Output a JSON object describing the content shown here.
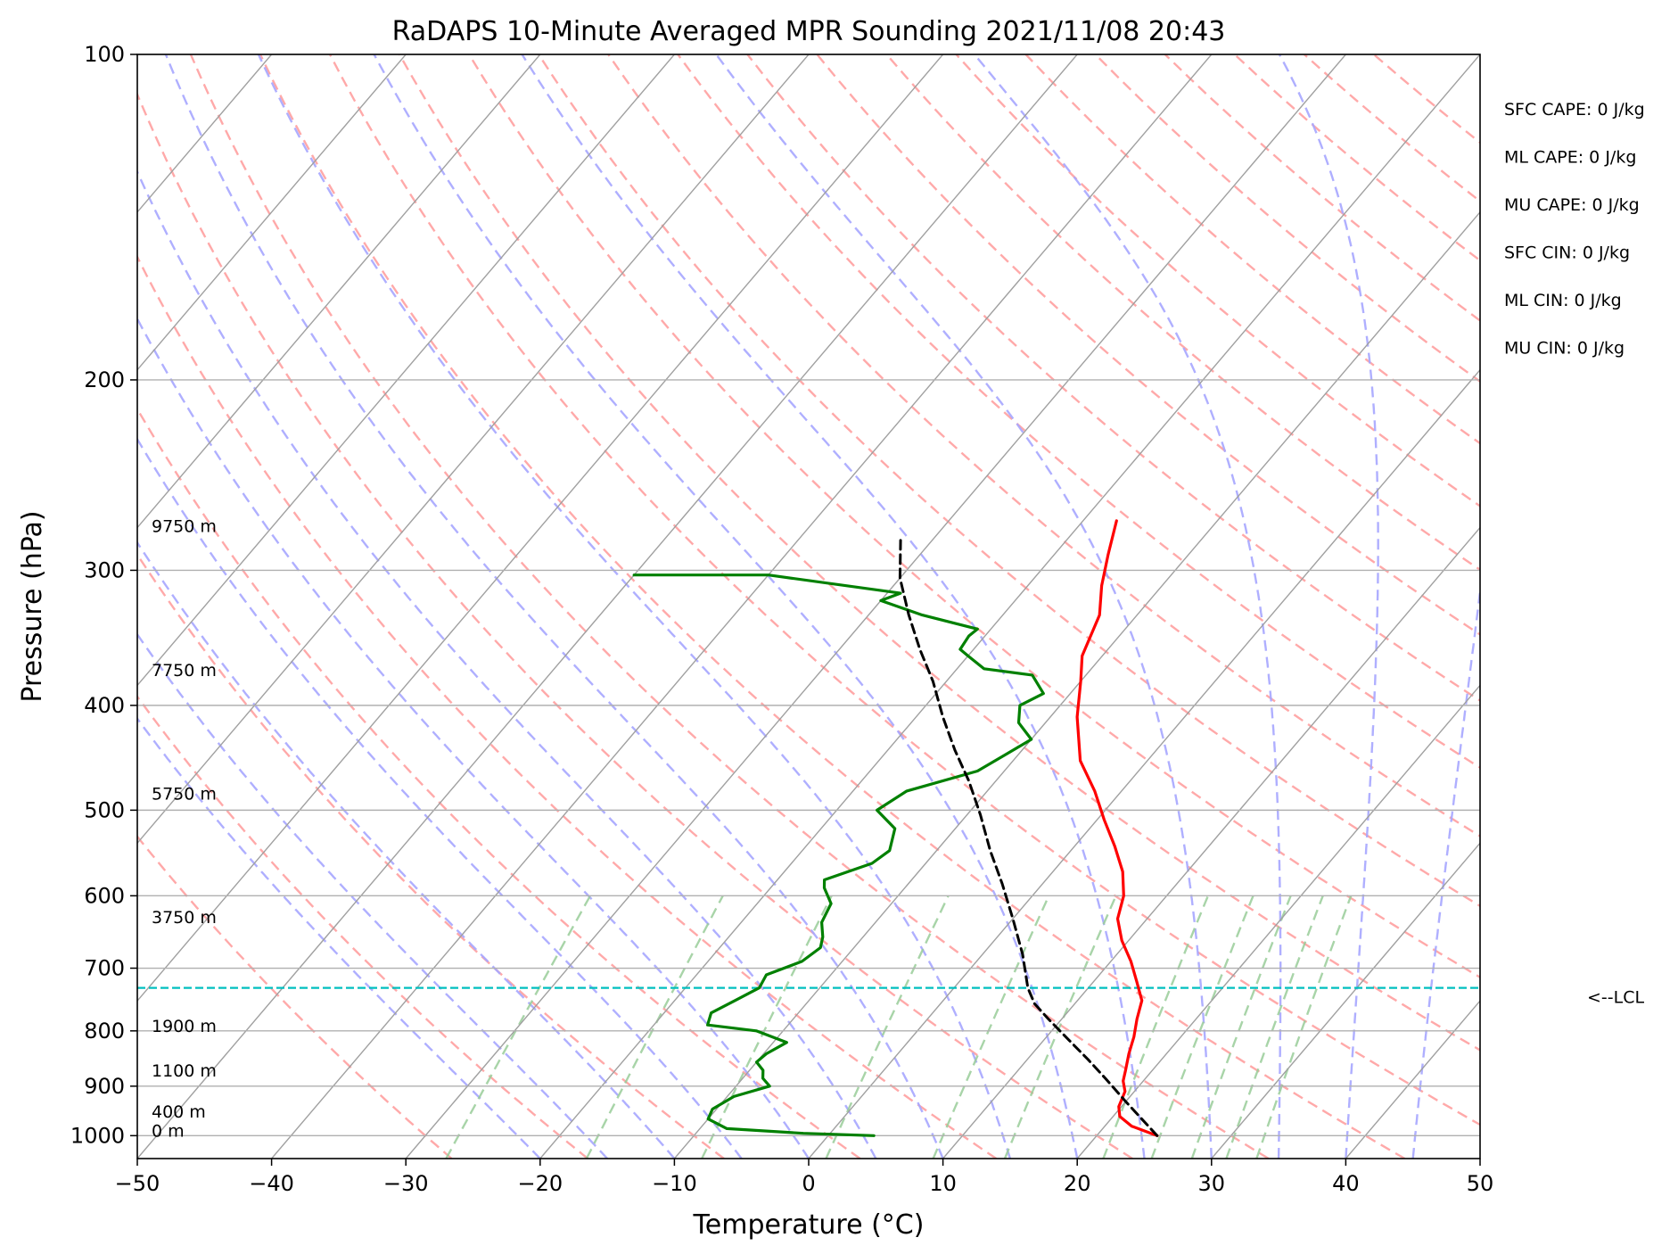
{
  "chart_data": {
    "type": "line",
    "title": "RaDAPS 10-Minute Averaged MPR Sounding 2021/11/08 20:43",
    "xlabel": "Temperature (°C)",
    "ylabel": "Pressure (hPa)",
    "xlim": [
      -50,
      50
    ],
    "ylim": [
      1050,
      100
    ],
    "y_scale": "log",
    "skew": true,
    "grid": true,
    "x_ticks": [
      -50,
      -40,
      -30,
      -20,
      -10,
      0,
      10,
      20,
      30,
      40,
      50
    ],
    "x_tick_labels": [
      "−50",
      "−40",
      "−30",
      "−20",
      "−10",
      "0",
      "10",
      "20",
      "30",
      "40",
      "50"
    ],
    "y_ticks": [
      100,
      200,
      300,
      400,
      500,
      600,
      700,
      800,
      900,
      1000
    ],
    "y_tick_labels": [
      "100",
      "200",
      "300",
      "400",
      "500",
      "600",
      "700",
      "800",
      "900",
      "1000"
    ],
    "colors": {
      "temperature": "#ff0000",
      "dewpoint": "#008000",
      "parcel": "#000000",
      "lcl": "#00bfbf",
      "isotherm": "#a0a0a0",
      "dry_adiabat": "#ff9a9a",
      "moist_adiabat": "#a6a6ff",
      "mixing_ratio": "#99cc99",
      "grid": "#b0b0b0"
    },
    "series": [
      {
        "key": "temperature",
        "x": [
          24.5,
          22.0,
          20.5,
          19.8,
          19.3,
          18.5,
          18.0,
          17.2,
          16.5,
          15.6,
          14.8,
          13.2,
          11.5,
          9.5,
          7.8,
          6.8,
          5.2,
          3.0,
          0.5,
          -2.0,
          -5.0,
          -8.0,
          -10.0,
          -11.5,
          -12.8,
          -14.5,
          -16.0,
          -17.5
        ],
        "y": [
          1000,
          980,
          960,
          940,
          910,
          890,
          870,
          840,
          810,
          780,
          750,
          720,
          690,
          660,
          630,
          600,
          570,
          540,
          510,
          480,
          450,
          410,
          380,
          360,
          330,
          310,
          290,
          270
        ]
      },
      {
        "key": "dewpoint",
        "x": [
          3.4,
          -2.0,
          -8.0,
          -10.0,
          -10.3,
          -9.5,
          -7.5,
          -8.5,
          -9.0,
          -10.0,
          -9.8,
          -9.0,
          -12.0,
          -16.0,
          -16.5,
          -15.5,
          -14.5,
          -14.8,
          -13.0,
          -12.5,
          -13.0,
          -14.0,
          -14.5,
          -16.0,
          -16.5,
          -14.0,
          -13.5,
          -14.5,
          -17.0,
          -16.0,
          -12.0,
          -11.0,
          -10.0,
          -12.0,
          -13.0,
          -12.0,
          -14.0,
          -18.0,
          -20.0,
          -21.0,
          -21.2,
          -21.0,
          -26.0,
          -30.0,
          -29.0,
          -40.0,
          -50.0
        ],
        "y": [
          1000,
          995,
          985,
          965,
          945,
          920,
          900,
          885,
          870,
          855,
          840,
          820,
          800,
          790,
          770,
          750,
          730,
          710,
          690,
          670,
          655,
          635,
          610,
          590,
          580,
          560,
          545,
          520,
          500,
          480,
          460,
          445,
          430,
          415,
          400,
          390,
          375,
          370,
          360,
          355,
          345,
          340,
          330,
          320,
          315,
          303,
          303
        ]
      },
      {
        "key": "parcel",
        "x": [
          24.5,
          20.0,
          17.0,
          14.5,
          11.8,
          9.0,
          7.0,
          5.5,
          3.0,
          0.0,
          -3.0,
          -6.0,
          -9.0,
          -12.0,
          -15.0,
          -18.0,
          -21.0,
          -24.0,
          -27.0,
          -30.0,
          -32.5
        ],
        "y": [
          1000,
          930,
          885,
          850,
          815,
          780,
          755,
          730,
          680,
          630,
          585,
          545,
          505,
          470,
          440,
          410,
          380,
          355,
          330,
          305,
          280
        ]
      }
    ],
    "lcl": {
      "pressure": 730,
      "label": "<--LCL"
    },
    "height_labels": [
      {
        "text": "9750 m",
        "p": 276
      },
      {
        "text": "7750 m",
        "p": 375
      },
      {
        "text": "5750 m",
        "p": 488
      },
      {
        "text": "3750 m",
        "p": 635
      },
      {
        "text": "1900 m",
        "p": 800
      },
      {
        "text": "1100 m",
        "p": 880
      },
      {
        "text": "400 m",
        "p": 960
      },
      {
        "text": "0 m",
        "p": 1000
      }
    ],
    "indices": [
      "SFC CAPE: 0 J/kg",
      "ML CAPE: 0 J/kg",
      "MU CAPE: 0 J/kg",
      "SFC CIN: 0 J/kg",
      "ML CIN: 0 J/kg",
      "MU CIN: 0 J/kg"
    ]
  }
}
